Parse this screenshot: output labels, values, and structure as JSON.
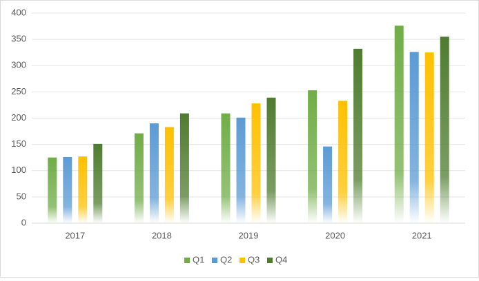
{
  "chart_data": {
    "type": "bar",
    "categories": [
      "2017",
      "2018",
      "2019",
      "2020",
      "2021"
    ],
    "series": [
      {
        "name": "Q1",
        "color": "#70ad47",
        "values": [
          125,
          171,
          209,
          253,
          376
        ]
      },
      {
        "name": "Q2",
        "color": "#5b9bd5",
        "values": [
          126,
          190,
          201,
          146,
          326
        ]
      },
      {
        "name": "Q3",
        "color": "#ffc000",
        "values": [
          127,
          183,
          228,
          233,
          325
        ]
      },
      {
        "name": "Q4",
        "color": "#4f7c2f",
        "values": [
          151,
          209,
          239,
          332,
          355
        ]
      }
    ],
    "ylim": [
      0,
      400
    ],
    "yticks": [
      0,
      50,
      100,
      150,
      200,
      250,
      300,
      350,
      400
    ],
    "grid": true,
    "legend": "bottom"
  }
}
